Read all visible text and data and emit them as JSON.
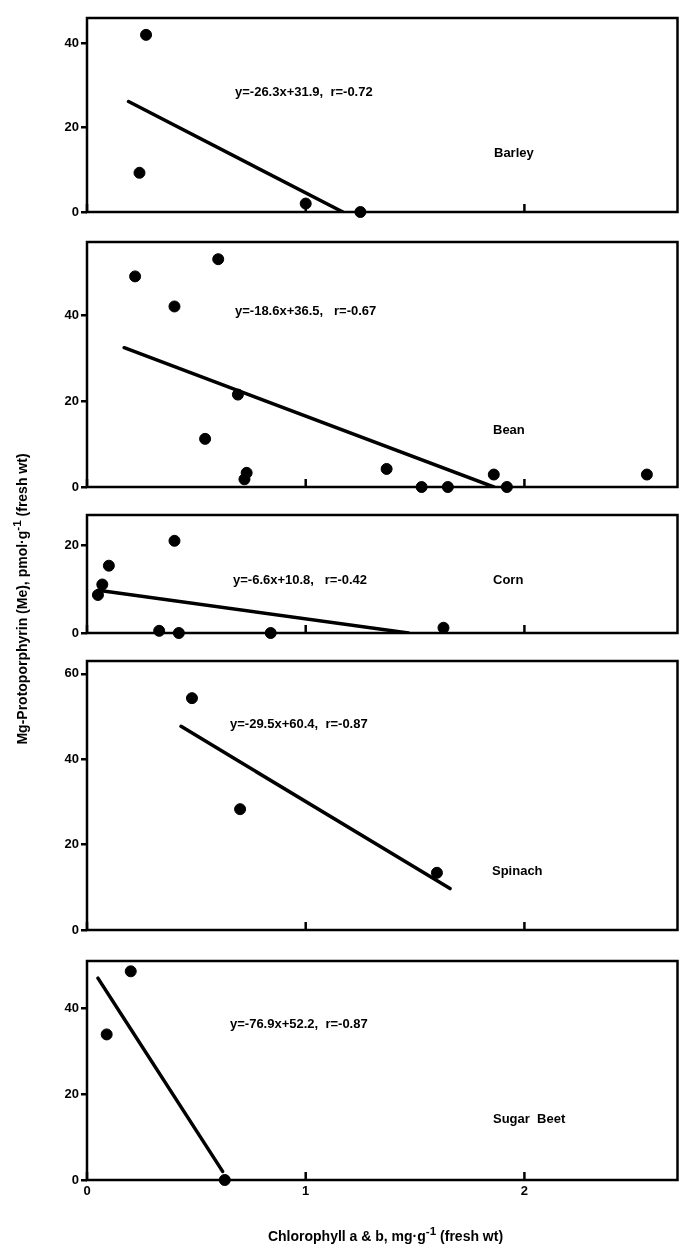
{
  "chart_data": [
    {
      "type": "scatter",
      "title": "Barley",
      "annotations": [
        "y=-26.3x+31.9,  r=-0.72"
      ],
      "xlim": [
        0,
        2.7
      ],
      "xticks": [
        {
          "value": 0,
          "label": null
        },
        {
          "value": 1,
          "label": null
        },
        {
          "value": 2,
          "label": null
        }
      ],
      "ylim": [
        0,
        46
      ],
      "yticks": [
        0,
        20,
        40
      ],
      "tick_labels": "y",
      "series": [
        {
          "color": "#000000",
          "marker": "circle",
          "x": [
            0.27,
            0.24,
            1.0,
            1.25
          ],
          "values": [
            42,
            9.3,
            2,
            0
          ]
        },
        {
          "type": "line",
          "marker": "none",
          "color": "#000000",
          "x": [
            0.19,
            1.17
          ],
          "values": [
            26.2,
            0
          ]
        }
      ]
    },
    {
      "type": "scatter",
      "title": "Bean",
      "annotations": [
        "y=-18.6x+36.5,   r=-0.67"
      ],
      "xlim": [
        0,
        2.7
      ],
      "xticks": [
        {
          "value": 0,
          "label": null
        },
        {
          "value": 1,
          "label": null
        },
        {
          "value": 2,
          "label": null
        }
      ],
      "ylim": [
        0,
        57
      ],
      "yticks": [
        0,
        20,
        40
      ],
      "tick_labels": "y",
      "series": [
        {
          "color": "#000000",
          "marker": "circle",
          "x": [
            0.22,
            0.4,
            0.6,
            0.69,
            0.54,
            0.73,
            0.72,
            1.37,
            1.53,
            1.65,
            1.86,
            1.92,
            2.56
          ],
          "values": [
            49,
            42,
            53,
            21.5,
            11.2,
            3.3,
            1.8,
            4.2,
            0,
            0,
            2.9,
            0,
            2.9
          ]
        },
        {
          "type": "line",
          "marker": "none",
          "color": "#000000",
          "x": [
            0.17,
            1.86
          ],
          "values": [
            32.4,
            0
          ]
        }
      ]
    },
    {
      "type": "scatter",
      "title": "Corn",
      "ylabel": "Mg-Protoporphyrin (Me),   pmol·g$^{-1}$  (fresh  wt)",
      "annotations": [
        "y=-6.6x+10.8,   r=-0.42"
      ],
      "xlim": [
        0,
        2.7
      ],
      "xticks": [
        {
          "value": 0,
          "label": null
        },
        {
          "value": 1,
          "label": null
        },
        {
          "value": 2,
          "label": null
        }
      ],
      "ylim": [
        0,
        27
      ],
      "yticks": [
        0,
        20
      ],
      "tick_labels": "y",
      "series": [
        {
          "color": "#000000",
          "marker": "circle",
          "x": [
            0.05,
            0.07,
            0.1,
            0.4,
            0.33,
            0.42,
            0.84,
            1.63
          ],
          "values": [
            8.7,
            11.1,
            15.4,
            21.1,
            0.5,
            0,
            0,
            1.2
          ]
        },
        {
          "type": "line",
          "marker": "none",
          "color": "#000000",
          "x": [
            0.05,
            1.47
          ],
          "values": [
            9.8,
            0
          ]
        }
      ]
    },
    {
      "type": "scatter",
      "title": "Spinach",
      "annotations": [
        "y=-29.5x+60.4,  r=-0.87"
      ],
      "xlim": [
        0,
        2.7
      ],
      "xticks": [
        {
          "value": 0,
          "label": null
        },
        {
          "value": 1,
          "label": null
        },
        {
          "value": 2,
          "label": null
        }
      ],
      "ylim": [
        0,
        63
      ],
      "yticks": [
        0,
        20,
        40,
        60
      ],
      "tick_labels": "y",
      "series": [
        {
          "color": "#000000",
          "marker": "circle",
          "x": [
            0.48,
            0.7,
            1.6
          ],
          "values": [
            54.3,
            28.3,
            13.4
          ]
        },
        {
          "type": "line",
          "marker": "none",
          "color": "#000000",
          "x": [
            0.43,
            1.66
          ],
          "values": [
            47.7,
            9.7
          ]
        }
      ]
    },
    {
      "type": "scatter",
      "title": "Sugar  Beet",
      "xlabel": "Chlorophyll  a & b,  mg·g$^{-1}$ (fresh  wt)",
      "annotations": [
        "y=-76.9x+52.2,  r=-0.87"
      ],
      "xlim": [
        0,
        2.7
      ],
      "xticks": [
        0,
        1,
        2
      ],
      "ylim": [
        0,
        51
      ],
      "yticks": [
        0,
        20,
        40
      ],
      "series": [
        {
          "color": "#000000",
          "marker": "circle",
          "x": [
            0.2,
            0.09,
            0.63
          ],
          "values": [
            48.6,
            33.9,
            0
          ]
        },
        {
          "type": "line",
          "marker": "none",
          "color": "#000000",
          "x": [
            0.05,
            0.62
          ],
          "values": [
            47,
            2
          ]
        }
      ]
    }
  ]
}
